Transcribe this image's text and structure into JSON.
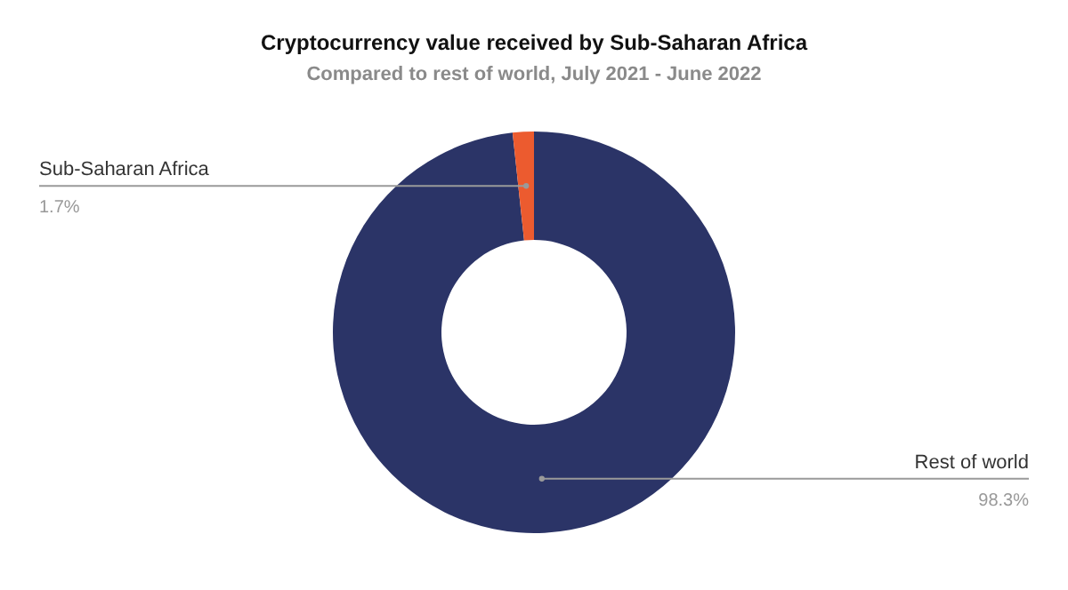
{
  "chart_data": {
    "type": "donut",
    "title": "Cryptocurrency value received by Sub-Saharan Africa",
    "subtitle": "Compared to rest of world, July 2021 - June 2022",
    "categories": [
      "Rest of world",
      "Sub-Saharan Africa"
    ],
    "values": [
      98.3,
      1.7
    ],
    "value_labels": [
      "98.3%",
      "1.7%"
    ],
    "colors": [
      "#2b3467",
      "#ec5b2f"
    ],
    "legend": false
  }
}
